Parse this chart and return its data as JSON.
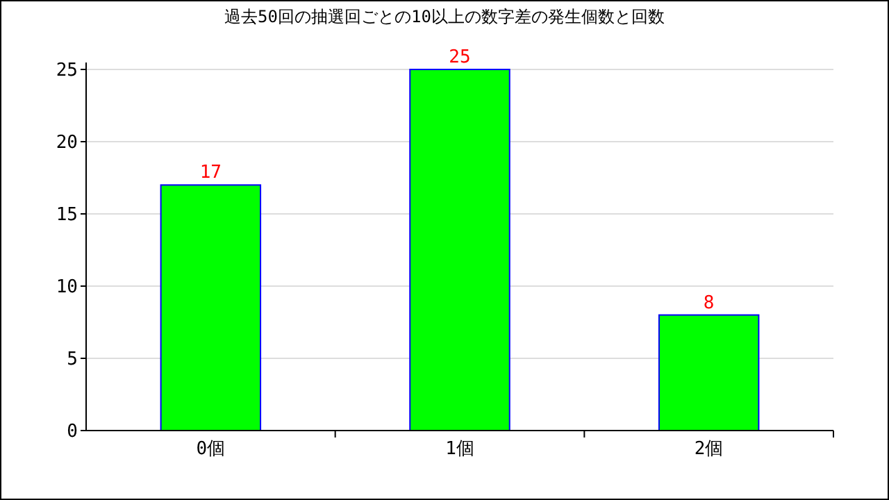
{
  "chart_data": {
    "type": "bar",
    "title": "過去50回の抽選回ごとの10以上の数字差の発生個数と回数",
    "categories": [
      "0個",
      "1個",
      "2個"
    ],
    "values": [
      17,
      25,
      8
    ],
    "color": "#00ff00",
    "ylim": [
      0,
      25
    ],
    "yticks": [
      0,
      5,
      10,
      15,
      20,
      25
    ],
    "grid": "y",
    "data_labels": true
  }
}
